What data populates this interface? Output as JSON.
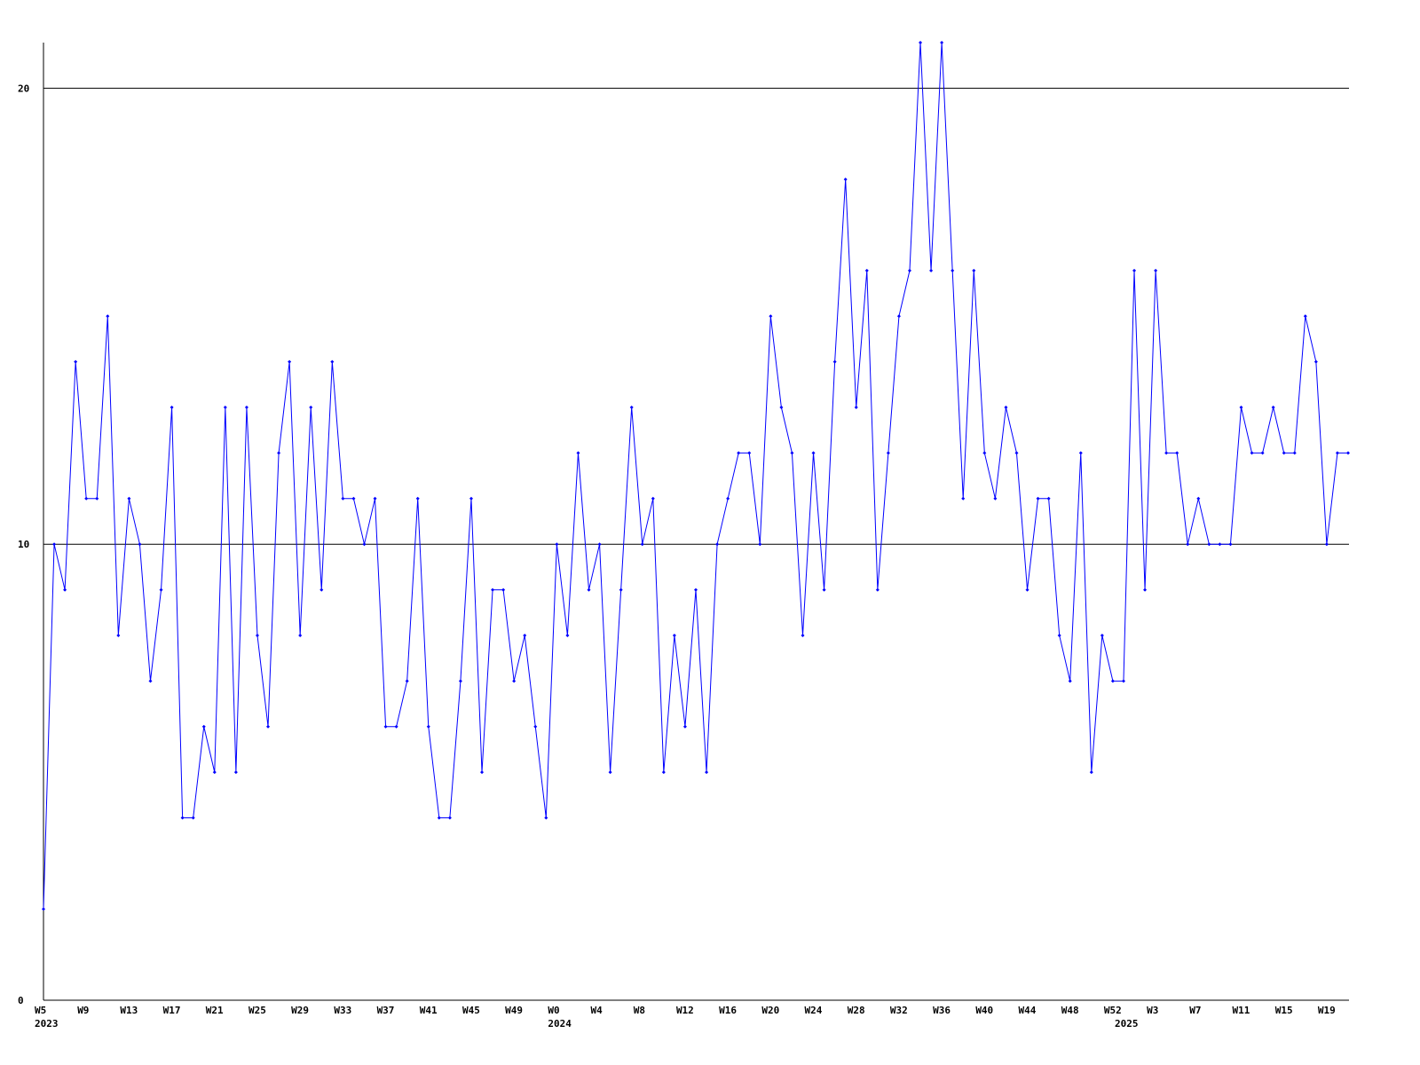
{
  "chart_data": {
    "type": "line",
    "categories": [
      "W5",
      null,
      null,
      null,
      "W9",
      null,
      null,
      null,
      "W13",
      null,
      null,
      null,
      "W17",
      null,
      null,
      null,
      "W21",
      null,
      null,
      null,
      "W25",
      null,
      null,
      null,
      "W29",
      null,
      null,
      null,
      "W33",
      null,
      null,
      null,
      "W37",
      null,
      null,
      null,
      "W41",
      null,
      null,
      null,
      "W45",
      null,
      null,
      null,
      "W49",
      null,
      null,
      null,
      "W0",
      null,
      null,
      null,
      "W4",
      null,
      null,
      null,
      "W8",
      null,
      null,
      null,
      "W12",
      null,
      null,
      null,
      "W16",
      null,
      null,
      null,
      "W20",
      null,
      null,
      null,
      "W24",
      null,
      null,
      null,
      "W28",
      null,
      null,
      null,
      "W32",
      null,
      null,
      null,
      "W36",
      null,
      null,
      null,
      "W40",
      null,
      null,
      null,
      "W44",
      null,
      null,
      null,
      "W48",
      null,
      null,
      null,
      "W52",
      null,
      null,
      null,
      "W3",
      null,
      null,
      null,
      "W7",
      null,
      null,
      null,
      "W11",
      null,
      null,
      null,
      "W15",
      null,
      null,
      null,
      "W19",
      null,
      null
    ],
    "category_years": [
      "2023",
      null,
      null,
      null,
      null,
      null,
      null,
      null,
      null,
      null,
      null,
      null,
      null,
      null,
      null,
      null,
      null,
      null,
      null,
      null,
      null,
      null,
      null,
      null,
      null,
      null,
      null,
      null,
      null,
      null,
      null,
      null,
      null,
      null,
      null,
      null,
      null,
      null,
      null,
      null,
      null,
      null,
      null,
      null,
      null,
      null,
      null,
      null,
      "2024",
      null,
      null,
      null,
      null,
      null,
      null,
      null,
      null,
      null,
      null,
      null,
      null,
      null,
      null,
      null,
      null,
      null,
      null,
      null,
      null,
      null,
      null,
      null,
      null,
      null,
      null,
      null,
      null,
      null,
      null,
      null,
      null,
      null,
      null,
      null,
      null,
      null,
      null,
      null,
      null,
      null,
      null,
      null,
      null,
      null,
      null,
      null,
      null,
      null,
      null,
      null,
      null,
      "2025",
      null,
      null,
      null,
      null,
      null,
      null,
      null,
      null,
      null,
      null,
      null,
      null,
      null,
      null,
      null,
      null,
      null,
      null,
      null,
      null,
      null
    ],
    "series": [
      {
        "color": "#0000ff",
        "values": [
          2,
          10,
          9,
          14,
          11,
          11,
          15,
          8,
          11,
          10,
          7,
          9,
          13,
          4,
          4,
          6,
          5,
          13,
          5,
          13,
          8,
          6,
          12,
          14,
          8,
          13,
          9,
          14,
          11,
          11,
          10,
          11,
          6,
          6,
          7,
          11,
          6,
          4,
          4,
          7,
          11,
          5,
          9,
          9,
          7,
          8,
          6,
          4,
          10,
          8,
          12,
          9,
          10,
          5,
          9,
          13,
          10,
          11,
          5,
          8,
          6,
          9,
          5,
          10,
          11,
          12,
          12,
          10,
          15,
          13,
          12,
          8,
          12,
          9,
          14,
          18,
          13,
          16,
          9,
          12,
          15,
          16,
          21,
          16,
          21,
          16,
          11,
          16,
          12,
          11,
          13,
          12,
          9,
          11,
          11,
          8,
          7,
          12,
          5,
          8,
          7,
          7,
          16,
          9,
          16,
          12,
          12,
          10,
          11,
          10,
          10,
          10,
          13,
          12,
          12,
          13,
          12,
          12,
          15,
          14,
          10,
          12,
          12
        ]
      }
    ],
    "ylim": [
      0,
      21
    ],
    "yticks": [
      0,
      10,
      20
    ],
    "grid": true
  }
}
